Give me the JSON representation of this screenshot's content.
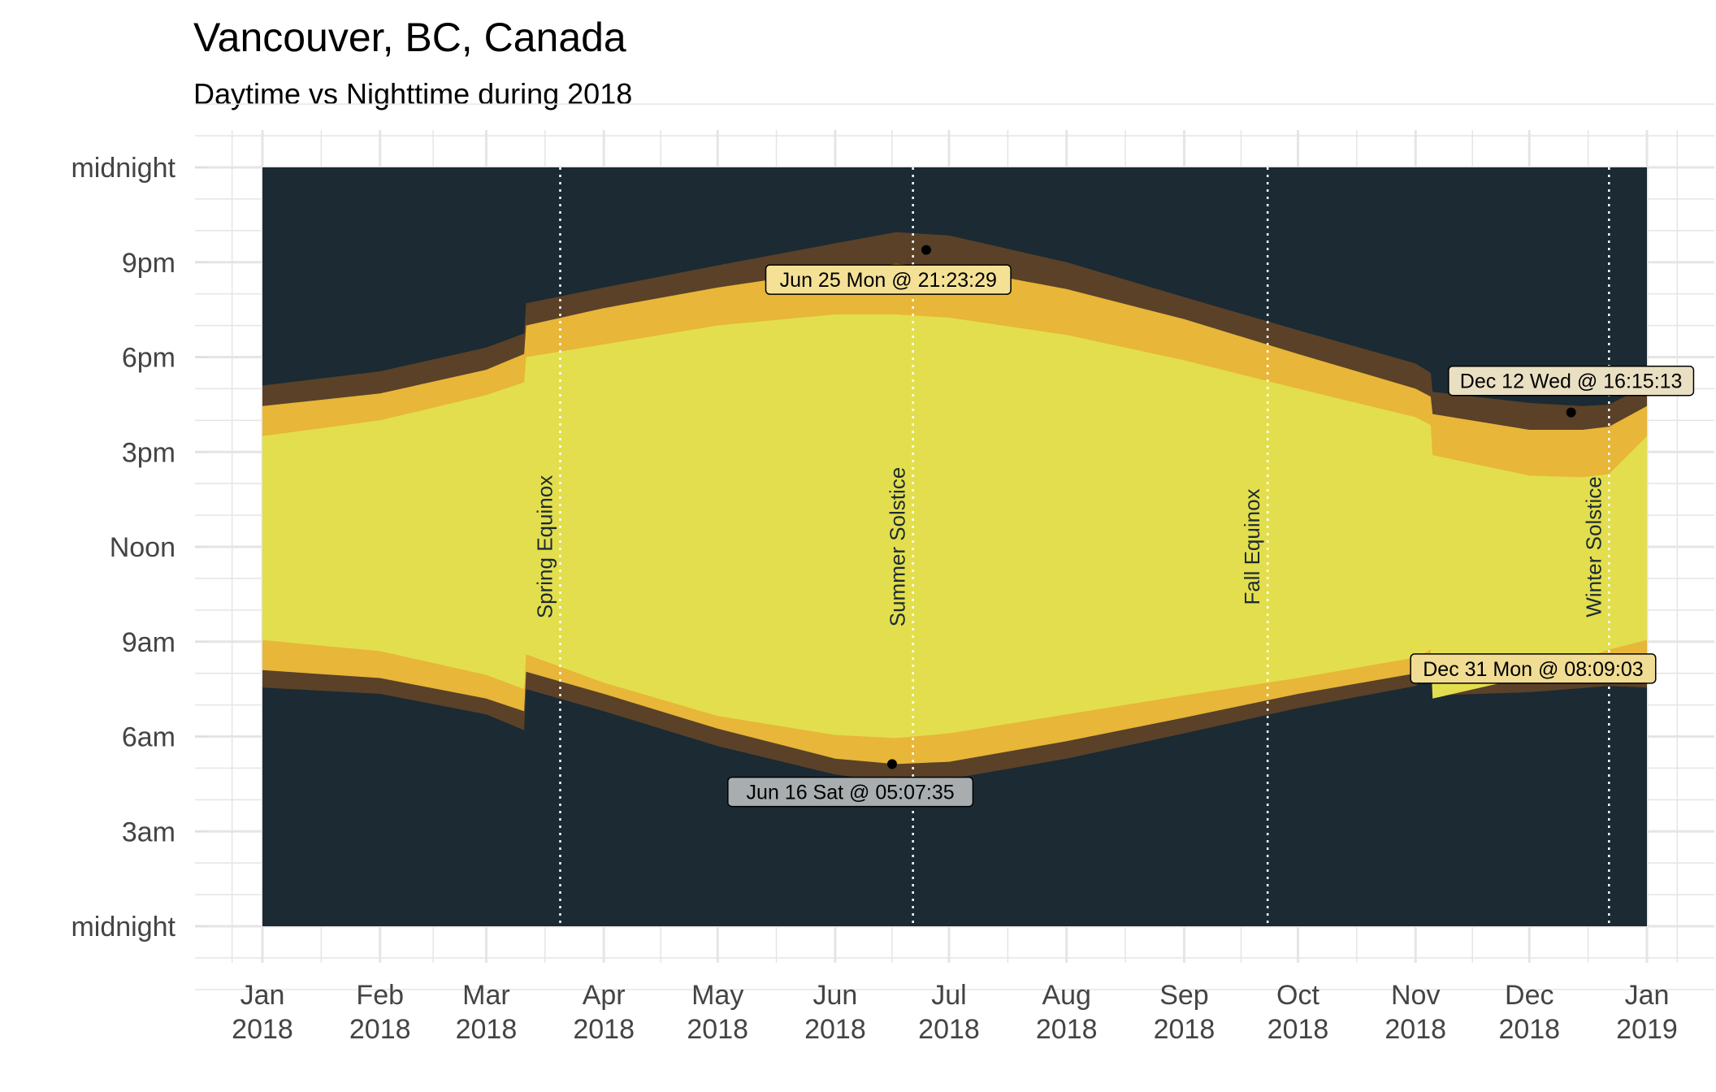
{
  "chart_data": {
    "type": "area",
    "title": "Vancouver, BC, Canada",
    "subtitle": "Daytime vs Nighttime during 2018",
    "xlabel": "",
    "ylabel": "",
    "x_ticks": [
      {
        "day": 0,
        "month": "Jan",
        "year": "2018"
      },
      {
        "day": 31,
        "month": "Feb",
        "year": "2018"
      },
      {
        "day": 59,
        "month": "Mar",
        "year": "2018"
      },
      {
        "day": 90,
        "month": "Apr",
        "year": "2018"
      },
      {
        "day": 120,
        "month": "May",
        "year": "2018"
      },
      {
        "day": 151,
        "month": "Jun",
        "year": "2018"
      },
      {
        "day": 181,
        "month": "Jul",
        "year": "2018"
      },
      {
        "day": 212,
        "month": "Aug",
        "year": "2018"
      },
      {
        "day": 243,
        "month": "Sep",
        "year": "2018"
      },
      {
        "day": 273,
        "month": "Oct",
        "year": "2018"
      },
      {
        "day": 304,
        "month": "Nov",
        "year": "2018"
      },
      {
        "day": 334,
        "month": "Dec",
        "year": "2018"
      },
      {
        "day": 365,
        "month": "Jan",
        "year": "2019"
      }
    ],
    "y_ticks": [
      {
        "hour": 0,
        "label": "midnight"
      },
      {
        "hour": 3,
        "label": "3am"
      },
      {
        "hour": 6,
        "label": "6am"
      },
      {
        "hour": 9,
        "label": "9am"
      },
      {
        "hour": 12,
        "label": "Noon"
      },
      {
        "hour": 15,
        "label": "3pm"
      },
      {
        "hour": 18,
        "label": "6pm"
      },
      {
        "hour": 21,
        "label": "9pm"
      },
      {
        "hour": 24,
        "label": "midnight"
      }
    ],
    "xlim": [
      0,
      365
    ],
    "ylim": [
      0,
      24
    ],
    "grid": true,
    "colors": {
      "night": "#1b2a33",
      "astronomical_twilight": "#5a4128",
      "civil_twilight": "#e8b638",
      "day": "#e3de4d",
      "event_line": "#ffffff"
    },
    "series": [
      {
        "band": "night_end",
        "points": [
          [
            0,
            7.55
          ],
          [
            31,
            7.35
          ],
          [
            59,
            6.7
          ],
          [
            69,
            6.2
          ],
          [
            69.5,
            7.5
          ],
          [
            90,
            6.8
          ],
          [
            120,
            5.7
          ],
          [
            151,
            4.8
          ],
          [
            167,
            4.55
          ],
          [
            181,
            4.65
          ],
          [
            212,
            5.3
          ],
          [
            243,
            6.1
          ],
          [
            273,
            6.9
          ],
          [
            304,
            7.6
          ],
          [
            308,
            8.0
          ],
          [
            308.5,
            7.3
          ],
          [
            334,
            7.4
          ],
          [
            355,
            7.6
          ],
          [
            365,
            7.55
          ]
        ]
      },
      {
        "band": "civil_dawn",
        "points": [
          [
            0,
            8.1
          ],
          [
            31,
            7.85
          ],
          [
            59,
            7.2
          ],
          [
            69,
            6.8
          ],
          [
            69.5,
            8.05
          ],
          [
            90,
            7.35
          ],
          [
            120,
            6.25
          ],
          [
            151,
            5.3
          ],
          [
            167,
            5.13
          ],
          [
            181,
            5.2
          ],
          [
            212,
            5.85
          ],
          [
            243,
            6.6
          ],
          [
            273,
            7.35
          ],
          [
            304,
            8.0
          ],
          [
            308,
            8.2
          ],
          [
            308.5,
            7.6
          ],
          [
            334,
            7.85
          ],
          [
            355,
            8.05
          ],
          [
            365,
            8.15
          ]
        ]
      },
      {
        "band": "sunrise",
        "points": [
          [
            0,
            9.05
          ],
          [
            31,
            8.7
          ],
          [
            59,
            7.95
          ],
          [
            69,
            7.5
          ],
          [
            69.5,
            8.6
          ],
          [
            90,
            7.7
          ],
          [
            120,
            6.65
          ],
          [
            151,
            6.05
          ],
          [
            167,
            5.95
          ],
          [
            181,
            6.1
          ],
          [
            212,
            6.7
          ],
          [
            243,
            7.3
          ],
          [
            273,
            7.85
          ],
          [
            304,
            8.5
          ],
          [
            308,
            8.75
          ],
          [
            308.5,
            7.2
          ],
          [
            334,
            7.9
          ],
          [
            355,
            8.75
          ],
          [
            365,
            9.05
          ]
        ]
      },
      {
        "band": "sunset",
        "points": [
          [
            0,
            15.5
          ],
          [
            31,
            16.0
          ],
          [
            59,
            16.8
          ],
          [
            69,
            17.2
          ],
          [
            69.5,
            18.0
          ],
          [
            90,
            18.4
          ],
          [
            120,
            19.0
          ],
          [
            151,
            19.35
          ],
          [
            167,
            19.35
          ],
          [
            181,
            19.25
          ],
          [
            212,
            18.7
          ],
          [
            243,
            17.9
          ],
          [
            273,
            17.0
          ],
          [
            304,
            16.1
          ],
          [
            308,
            15.85
          ],
          [
            308.5,
            14.9
          ],
          [
            334,
            14.25
          ],
          [
            348,
            14.2
          ],
          [
            355,
            14.3
          ],
          [
            365,
            15.5
          ]
        ]
      },
      {
        "band": "civil_dusk",
        "points": [
          [
            0,
            16.45
          ],
          [
            31,
            16.85
          ],
          [
            59,
            17.6
          ],
          [
            69,
            18.1
          ],
          [
            69.5,
            19.0
          ],
          [
            90,
            19.55
          ],
          [
            120,
            20.2
          ],
          [
            151,
            20.75
          ],
          [
            167,
            20.95
          ],
          [
            181,
            20.85
          ],
          [
            212,
            20.15
          ],
          [
            243,
            19.2
          ],
          [
            273,
            18.1
          ],
          [
            304,
            17.0
          ],
          [
            308,
            16.75
          ],
          [
            308.5,
            16.2
          ],
          [
            334,
            15.7
          ],
          [
            348,
            15.7
          ],
          [
            355,
            15.8
          ],
          [
            365,
            16.45
          ]
        ]
      },
      {
        "band": "night_start",
        "points": [
          [
            0,
            17.1
          ],
          [
            31,
            17.55
          ],
          [
            59,
            18.3
          ],
          [
            69,
            18.75
          ],
          [
            69.5,
            19.7
          ],
          [
            90,
            20.2
          ],
          [
            120,
            20.9
          ],
          [
            151,
            21.6
          ],
          [
            167,
            21.95
          ],
          [
            181,
            21.85
          ],
          [
            212,
            21.0
          ],
          [
            243,
            19.9
          ],
          [
            273,
            18.85
          ],
          [
            304,
            17.8
          ],
          [
            308,
            17.5
          ],
          [
            308.5,
            16.9
          ],
          [
            334,
            16.55
          ],
          [
            348,
            16.45
          ],
          [
            355,
            16.5
          ],
          [
            365,
            17.1
          ]
        ]
      }
    ],
    "events": [
      {
        "day": 78.5,
        "label": "Spring Equinox",
        "label_hour": 12
      },
      {
        "day": 171.5,
        "label": "Summer Solstice",
        "label_hour": 12
      },
      {
        "day": 265,
        "label": "Fall Equinox",
        "label_hour": 12
      },
      {
        "day": 355,
        "label": "Winter Solstice",
        "label_hour": 12
      }
    ],
    "annotations": [
      {
        "day": 175,
        "hour": 21.39,
        "label": "Jun 25 Mon @ 21:23:29",
        "fill": "#f4e196",
        "label_day": 165,
        "label_hour": 20.45
      },
      {
        "day": 166,
        "hour": 5.13,
        "label": "Jun 16 Sat @ 05:07:35",
        "fill": "#a8aeb0",
        "label_day": 155,
        "label_hour": 4.25
      },
      {
        "day": 345,
        "hour": 16.25,
        "label": "Dec 12 Wed @ 16:15:13",
        "fill": "#e9e0c3",
        "label_day": 345,
        "label_hour": 17.25
      },
      {
        "day": 364.5,
        "hour": 8.15,
        "label": "Dec 31 Mon @ 08:09:03",
        "fill": "#f0dc92",
        "label_day": 335,
        "label_hour": 8.15
      }
    ]
  }
}
